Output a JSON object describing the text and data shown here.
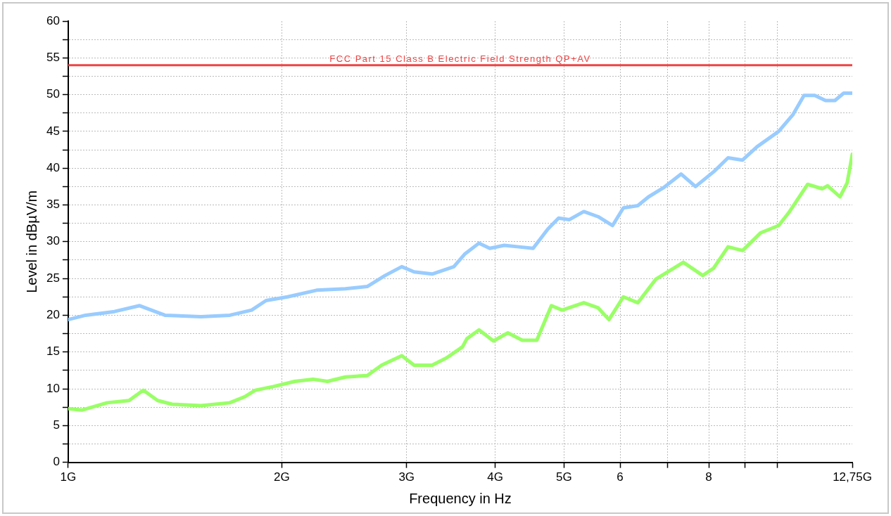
{
  "chart_data": {
    "type": "line",
    "xlabel": "Frequency in Hz",
    "ylabel": "Level in dBµV/m",
    "log": "x",
    "grid": true,
    "legend": false,
    "marker": "none",
    "line_style": "solid",
    "xlim": [
      1,
      12.75
    ],
    "xticks": [
      {
        "value": 1,
        "label": "1G"
      },
      {
        "value": 2,
        "label": "2G"
      },
      {
        "value": 3,
        "label": "3G"
      },
      {
        "value": 4,
        "label": "4G"
      },
      {
        "value": 5,
        "label": "5G"
      },
      6,
      {
        "value": 7,
        "label": null
      },
      8,
      {
        "value": 9,
        "label": null
      },
      {
        "value": 10,
        "label": null
      },
      {
        "value": 12.75,
        "label": "12,75G"
      }
    ],
    "ylim": [
      0,
      60
    ],
    "yticks": [
      0,
      {
        "value": 2.5,
        "label": null
      },
      5,
      {
        "value": 7.5,
        "label": null
      },
      10,
      {
        "value": 12.5,
        "label": null
      },
      15,
      {
        "value": 17.5,
        "label": null
      },
      20,
      {
        "value": 22.5,
        "label": null
      },
      25,
      {
        "value": 27.5,
        "label": null
      },
      30,
      {
        "value": 32.5,
        "label": null
      },
      35,
      {
        "value": 37.5,
        "label": null
      },
      40,
      {
        "value": 42.5,
        "label": null
      },
      45,
      {
        "value": 47.5,
        "label": null
      },
      50,
      {
        "value": 52.5,
        "label": null
      },
      55,
      {
        "value": 57.5,
        "label": null
      },
      60
    ],
    "ref_lines": [
      {
        "axis": "y",
        "value": 54,
        "label": "FCC Part 15 Class B Electric Field Strength QP+AV",
        "color": "#ee4444"
      }
    ],
    "series": [
      {
        "color": "#99ccff",
        "x": [
          1,
          1.058,
          1.162,
          1.261,
          1.369,
          1.539,
          1.69,
          1.814,
          1.901,
          2.039,
          2.24,
          2.46,
          2.64,
          2.798,
          2.953,
          3.074,
          3.259,
          3.497,
          3.622,
          3.795,
          3.93,
          4.119,
          4.317,
          4.524,
          4.744,
          4.914,
          5.089,
          5.333,
          5.587,
          5.855,
          6.064,
          6.355,
          6.581,
          6.898,
          7.315,
          7.664,
          8.128,
          8.518,
          8.929,
          9.356,
          10.04,
          10.52,
          10.9,
          11.29,
          11.69,
          12.05,
          12.4,
          12.75
        ],
        "values": [
          19.4,
          20.0,
          20.5,
          21.3,
          20.0,
          19.8,
          20.0,
          20.7,
          22.0,
          22.5,
          23.4,
          23.6,
          23.9,
          25.4,
          26.6,
          25.9,
          25.6,
          26.6,
          28.3,
          29.8,
          29.1,
          29.5,
          29.3,
          29.1,
          31.7,
          33.2,
          33.0,
          34.1,
          33.4,
          32.2,
          34.6,
          34.9,
          36.1,
          37.3,
          39.2,
          37.5,
          39.5,
          41.4,
          41.1,
          42.9,
          45.0,
          47.3,
          49.9,
          49.9,
          49.2,
          49.2,
          50.2,
          50.2
        ]
      },
      {
        "color": "#99ff66",
        "x": [
          1,
          1.045,
          1.135,
          1.218,
          1.276,
          1.337,
          1.401,
          1.539,
          1.69,
          1.772,
          1.835,
          1.946,
          2.087,
          2.214,
          2.32,
          2.46,
          2.64,
          2.766,
          2.953,
          3.074,
          3.259,
          3.416,
          3.597,
          3.648,
          3.795,
          3.977,
          4.168,
          4.368,
          4.578,
          4.8,
          4.971,
          5.333,
          5.587,
          5.787,
          6.064,
          6.355,
          6.737,
          7.145,
          7.367,
          7.846,
          8.128,
          8.518,
          8.929,
          9.466,
          10.04,
          10.4,
          11.03,
          11.56,
          11.77,
          12.25,
          12.54,
          12.75
        ],
        "values": [
          7.3,
          7.1,
          8.1,
          8.4,
          9.8,
          8.4,
          7.9,
          7.7,
          8.1,
          8.9,
          9.8,
          10.3,
          11.0,
          11.3,
          11.0,
          11.6,
          11.8,
          13.2,
          14.5,
          13.2,
          13.2,
          14.2,
          15.7,
          16.8,
          18.0,
          16.5,
          17.6,
          16.6,
          16.6,
          21.3,
          20.7,
          21.7,
          21.0,
          19.4,
          22.5,
          21.7,
          24.9,
          26.4,
          27.2,
          25.4,
          26.4,
          29.3,
          28.8,
          31.2,
          32.2,
          34.1,
          37.8,
          37.2,
          37.6,
          36.1,
          38.0,
          41.9
        ]
      }
    ]
  }
}
